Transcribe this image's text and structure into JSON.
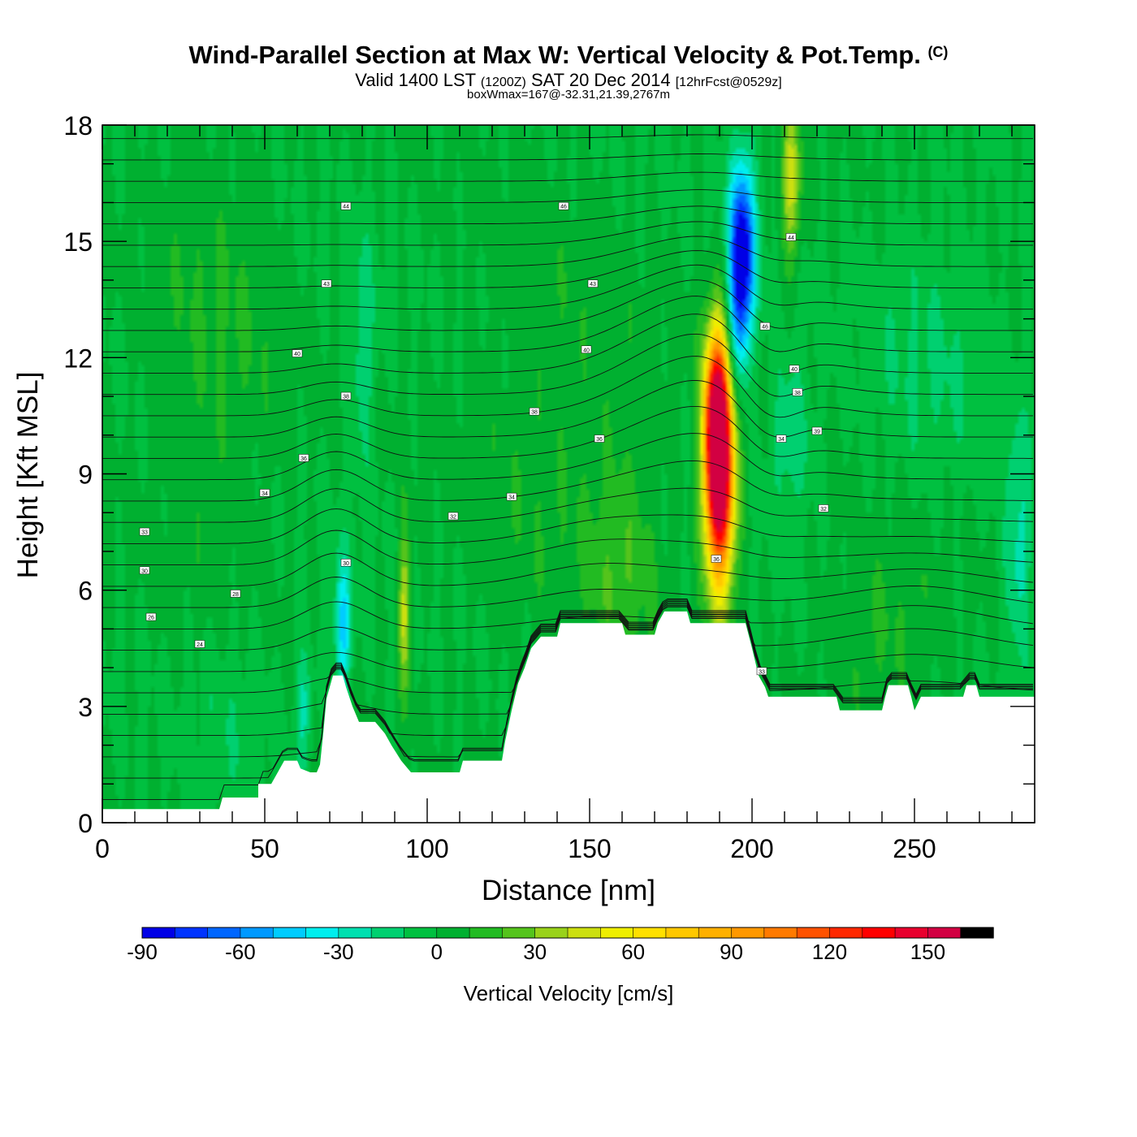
{
  "header": {
    "title": "Wind-Parallel Section at Max W: Vertical Velocity & Pot.Temp.",
    "copyright_mark": "(C)",
    "valid_prefix": "Valid 1400 LST",
    "valid_zulu": "(1200Z)",
    "valid_date": "SAT 20 Dec 2014",
    "forecast": "[12hrFcst@0529z]",
    "box_info": "boxWmax=167@-32.31,21.39,2767m"
  },
  "chart_data": {
    "type": "heatmap",
    "xlabel": "Distance [nm]",
    "ylabel": "Height [Kft MSL]",
    "xlim": [
      0,
      287
    ],
    "ylim": [
      0,
      18
    ],
    "x_ticks": [
      0,
      50,
      100,
      150,
      200,
      250
    ],
    "y_ticks": [
      0,
      3,
      6,
      9,
      12,
      15,
      18
    ],
    "grid": false,
    "shaded_field": "Vertical Velocity",
    "contour_field": "Pot.Temp.",
    "terrain_kft": [
      [
        0,
        0.35
      ],
      [
        20,
        0.35
      ],
      [
        36,
        0.35
      ],
      [
        37,
        0.65
      ],
      [
        48,
        0.65
      ],
      [
        48,
        1.0
      ],
      [
        52,
        1.0
      ],
      [
        54,
        1.3
      ],
      [
        56,
        1.6
      ],
      [
        60,
        1.6
      ],
      [
        61,
        1.4
      ],
      [
        64,
        1.3
      ],
      [
        66,
        1.3
      ],
      [
        67,
        1.5
      ],
      [
        68,
        2.3
      ],
      [
        69,
        3.2
      ],
      [
        71,
        3.8
      ],
      [
        74,
        3.8
      ],
      [
        75,
        3.5
      ],
      [
        77,
        3.0
      ],
      [
        79,
        2.6
      ],
      [
        84,
        2.6
      ],
      [
        87,
        2.3
      ],
      [
        89,
        2.0
      ],
      [
        92,
        1.6
      ],
      [
        95,
        1.3
      ],
      [
        110,
        1.3
      ],
      [
        111,
        1.6
      ],
      [
        123,
        1.6
      ],
      [
        124,
        2.1
      ],
      [
        126,
        2.9
      ],
      [
        128,
        3.6
      ],
      [
        130,
        4.0
      ],
      [
        132,
        4.5
      ],
      [
        135,
        4.8
      ],
      [
        140,
        4.8
      ],
      [
        141,
        5.15
      ],
      [
        160,
        5.15
      ],
      [
        161,
        4.85
      ],
      [
        170,
        4.85
      ],
      [
        171,
        5.15
      ],
      [
        173,
        5.45
      ],
      [
        180,
        5.45
      ],
      [
        181,
        5.15
      ],
      [
        198,
        5.15
      ],
      [
        200,
        4.5
      ],
      [
        202,
        3.8
      ],
      [
        204,
        3.5
      ],
      [
        205,
        3.25
      ],
      [
        226,
        3.25
      ],
      [
        227,
        2.9
      ],
      [
        240,
        2.9
      ],
      [
        241,
        3.25
      ],
      [
        242,
        3.55
      ],
      [
        248,
        3.55
      ],
      [
        249,
        3.25
      ],
      [
        250,
        2.9
      ],
      [
        252,
        3.25
      ],
      [
        265,
        3.25
      ],
      [
        266,
        3.55
      ],
      [
        269,
        3.55
      ],
      [
        270,
        3.25
      ],
      [
        287,
        3.25
      ]
    ],
    "w_features": [
      {
        "x": 190,
        "y": 9.0,
        "wx": 4.5,
        "wy": 3.0,
        "w": 167
      },
      {
        "x": 189,
        "y": 10.5,
        "wx": 3.5,
        "wy": 2.2,
        "w": 90
      },
      {
        "x": 197,
        "y": 15.0,
        "wx": 4.0,
        "wy": 2.2,
        "w": -80
      },
      {
        "x": 196,
        "y": 13.0,
        "wx": 3.5,
        "wy": 2.0,
        "w": -45
      },
      {
        "x": 74,
        "y": 5.0,
        "wx": 2.5,
        "wy": 1.8,
        "w": -45
      },
      {
        "x": 62,
        "y": 3.0,
        "wx": 2.5,
        "wy": 1.5,
        "w": -25
      },
      {
        "x": 93,
        "y": 5.5,
        "wx": 1.8,
        "wy": 2.0,
        "w": 45
      },
      {
        "x": 212,
        "y": 16.5,
        "wx": 3.0,
        "wy": 2.0,
        "w": 45
      },
      {
        "x": 212,
        "y": 10.0,
        "wx": 6.0,
        "wy": 2.0,
        "w": -20
      },
      {
        "x": 255,
        "y": 12.0,
        "wx": 20.0,
        "wy": 3.5,
        "w": -10
      },
      {
        "x": 160,
        "y": 6.5,
        "wx": 10.0,
        "wy": 3.0,
        "w": 15
      },
      {
        "x": 240,
        "y": 5.0,
        "wx": 18.0,
        "wy": 2.5,
        "w": 12
      },
      {
        "x": 40,
        "y": 3.0,
        "wx": 12.0,
        "wy": 2.5,
        "w": -8
      },
      {
        "x": 80,
        "y": 12.0,
        "wx": 4.0,
        "wy": 3.0,
        "w": -18
      },
      {
        "x": 282,
        "y": 7.0,
        "wx": 4.0,
        "wy": 3.0,
        "w": -25
      },
      {
        "x": 140,
        "y": 10.0,
        "wx": 30.0,
        "wy": 6.0,
        "w": 8
      },
      {
        "x": 35,
        "y": 12.0,
        "wx": 20.0,
        "wy": 6.0,
        "w": 10
      }
    ],
    "contour_labels": [
      {
        "x": 75,
        "y": 15.9,
        "text": "44"
      },
      {
        "x": 142,
        "y": 15.9,
        "text": "46"
      },
      {
        "x": 69,
        "y": 13.9,
        "text": "43"
      },
      {
        "x": 151,
        "y": 13.9,
        "text": "43"
      },
      {
        "x": 60,
        "y": 12.1,
        "text": "40"
      },
      {
        "x": 149,
        "y": 12.2,
        "text": "40"
      },
      {
        "x": 75,
        "y": 11.0,
        "text": "38"
      },
      {
        "x": 133,
        "y": 10.6,
        "text": "38"
      },
      {
        "x": 62,
        "y": 9.4,
        "text": "36"
      },
      {
        "x": 153,
        "y": 9.9,
        "text": "36"
      },
      {
        "x": 50,
        "y": 8.5,
        "text": "34"
      },
      {
        "x": 126,
        "y": 8.4,
        "text": "34"
      },
      {
        "x": 108,
        "y": 7.9,
        "text": "32"
      },
      {
        "x": 13,
        "y": 7.5,
        "text": "33"
      },
      {
        "x": 13,
        "y": 6.5,
        "text": "30"
      },
      {
        "x": 75,
        "y": 6.7,
        "text": "30"
      },
      {
        "x": 41,
        "y": 5.9,
        "text": "28"
      },
      {
        "x": 15,
        "y": 5.3,
        "text": "26"
      },
      {
        "x": 30,
        "y": 4.6,
        "text": "24"
      },
      {
        "x": 189,
        "y": 6.8,
        "text": "36"
      },
      {
        "x": 212,
        "y": 15.1,
        "text": "44"
      },
      {
        "x": 204,
        "y": 12.8,
        "text": "46"
      },
      {
        "x": 213,
        "y": 11.7,
        "text": "40"
      },
      {
        "x": 214,
        "y": 11.1,
        "text": "38"
      },
      {
        "x": 220,
        "y": 10.1,
        "text": "39"
      },
      {
        "x": 209,
        "y": 9.9,
        "text": "34"
      },
      {
        "x": 222,
        "y": 8.1,
        "text": "32"
      },
      {
        "x": 203,
        "y": 3.9,
        "text": "33"
      }
    ],
    "colorbar": {
      "label": "Vertical Velocity [cm/s]",
      "min": -90,
      "max": 170,
      "step": 10,
      "tick_labels": [
        "-90",
        "-60",
        "-30",
        "0",
        "30",
        "60",
        "90",
        "120",
        "150"
      ],
      "colors": [
        "#0000e6",
        "#0033ff",
        "#0066ff",
        "#0099ff",
        "#00ccff",
        "#00eeee",
        "#00e0b0",
        "#00d070",
        "#00c040",
        "#00b030",
        "#22bb22",
        "#55c41c",
        "#99d21a",
        "#ccdf10",
        "#eeee00",
        "#ffe000",
        "#ffc800",
        "#ffb000",
        "#ff9800",
        "#ff7a00",
        "#ff5200",
        "#ff2800",
        "#ff0000",
        "#e8002e",
        "#d20042",
        "#ffffff"
      ]
    }
  }
}
